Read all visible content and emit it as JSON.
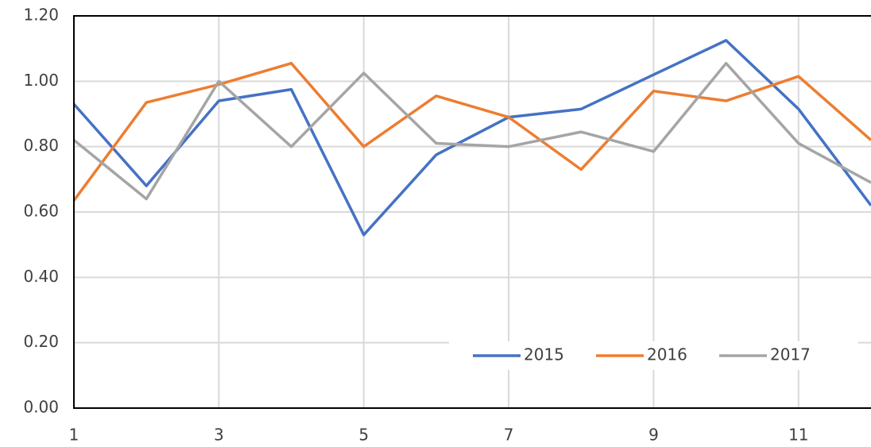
{
  "chart_data": {
    "type": "line",
    "x": [
      1,
      2,
      3,
      4,
      5,
      6,
      7,
      8,
      9,
      10,
      11,
      12
    ],
    "series": [
      {
        "name": "2015",
        "color": "#4472c4",
        "values": [
          0.93,
          0.68,
          0.94,
          0.975,
          0.53,
          0.775,
          0.89,
          0.915,
          1.02,
          1.125,
          0.915,
          0.62
        ]
      },
      {
        "name": "2016",
        "color": "#ed7d31",
        "values": [
          0.635,
          0.935,
          0.99,
          1.055,
          0.8,
          0.955,
          0.89,
          0.73,
          0.97,
          0.94,
          1.015,
          0.82
        ]
      },
      {
        "name": "2017",
        "color": "#a5a5a5",
        "values": [
          0.82,
          0.64,
          1.0,
          0.8,
          1.025,
          0.81,
          0.8,
          0.845,
          0.785,
          1.055,
          0.81,
          0.69
        ]
      }
    ],
    "xlim": [
      1,
      12
    ],
    "xticks": [
      1,
      3,
      5,
      7,
      9,
      11
    ],
    "ylim": [
      0,
      1.2
    ],
    "yticks": [
      {
        "value": 0,
        "label": "0.00"
      },
      {
        "value": 0.2,
        "label": "0.20"
      },
      {
        "value": 0.4,
        "label": "0.40"
      },
      {
        "value": 0.6,
        "label": "0.60"
      },
      {
        "value": 0.8,
        "label": "0.80"
      },
      {
        "value": 1.0,
        "label": "1.00"
      },
      {
        "value": 1.2,
        "label": "1.20"
      }
    ],
    "grid": true,
    "legend": "lower right"
  }
}
